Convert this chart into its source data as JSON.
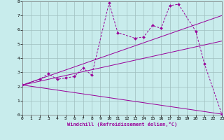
{
  "xlabel": "Windchill (Refroidissement éolien,°C)",
  "background_color": "#c8ecec",
  "line_color": "#990099",
  "xlim": [
    0,
    23
  ],
  "ylim": [
    0,
    8
  ],
  "xticks": [
    0,
    1,
    2,
    3,
    4,
    5,
    6,
    7,
    8,
    9,
    10,
    11,
    12,
    13,
    14,
    15,
    16,
    17,
    18,
    19,
    20,
    21,
    22,
    23
  ],
  "yticks": [
    0,
    1,
    2,
    3,
    4,
    5,
    6,
    7,
    8
  ],
  "series1_x": [
    0,
    2,
    3,
    4,
    5,
    6,
    7,
    8,
    10,
    11,
    13,
    14,
    15,
    16,
    17,
    18,
    20,
    21,
    23
  ],
  "series1_y": [
    2.1,
    2.5,
    2.9,
    2.5,
    2.6,
    2.7,
    3.3,
    2.8,
    7.9,
    5.8,
    5.4,
    5.5,
    6.3,
    6.1,
    7.7,
    7.8,
    5.9,
    3.6,
    0.05
  ],
  "line1_x": [
    0,
    23
  ],
  "line1_y": [
    2.1,
    5.2
  ],
  "line2_x": [
    0,
    23
  ],
  "line2_y": [
    2.1,
    7.0
  ],
  "line3_x": [
    0,
    23
  ],
  "line3_y": [
    2.1,
    0.05
  ],
  "grid_color": "#9fbfbf"
}
